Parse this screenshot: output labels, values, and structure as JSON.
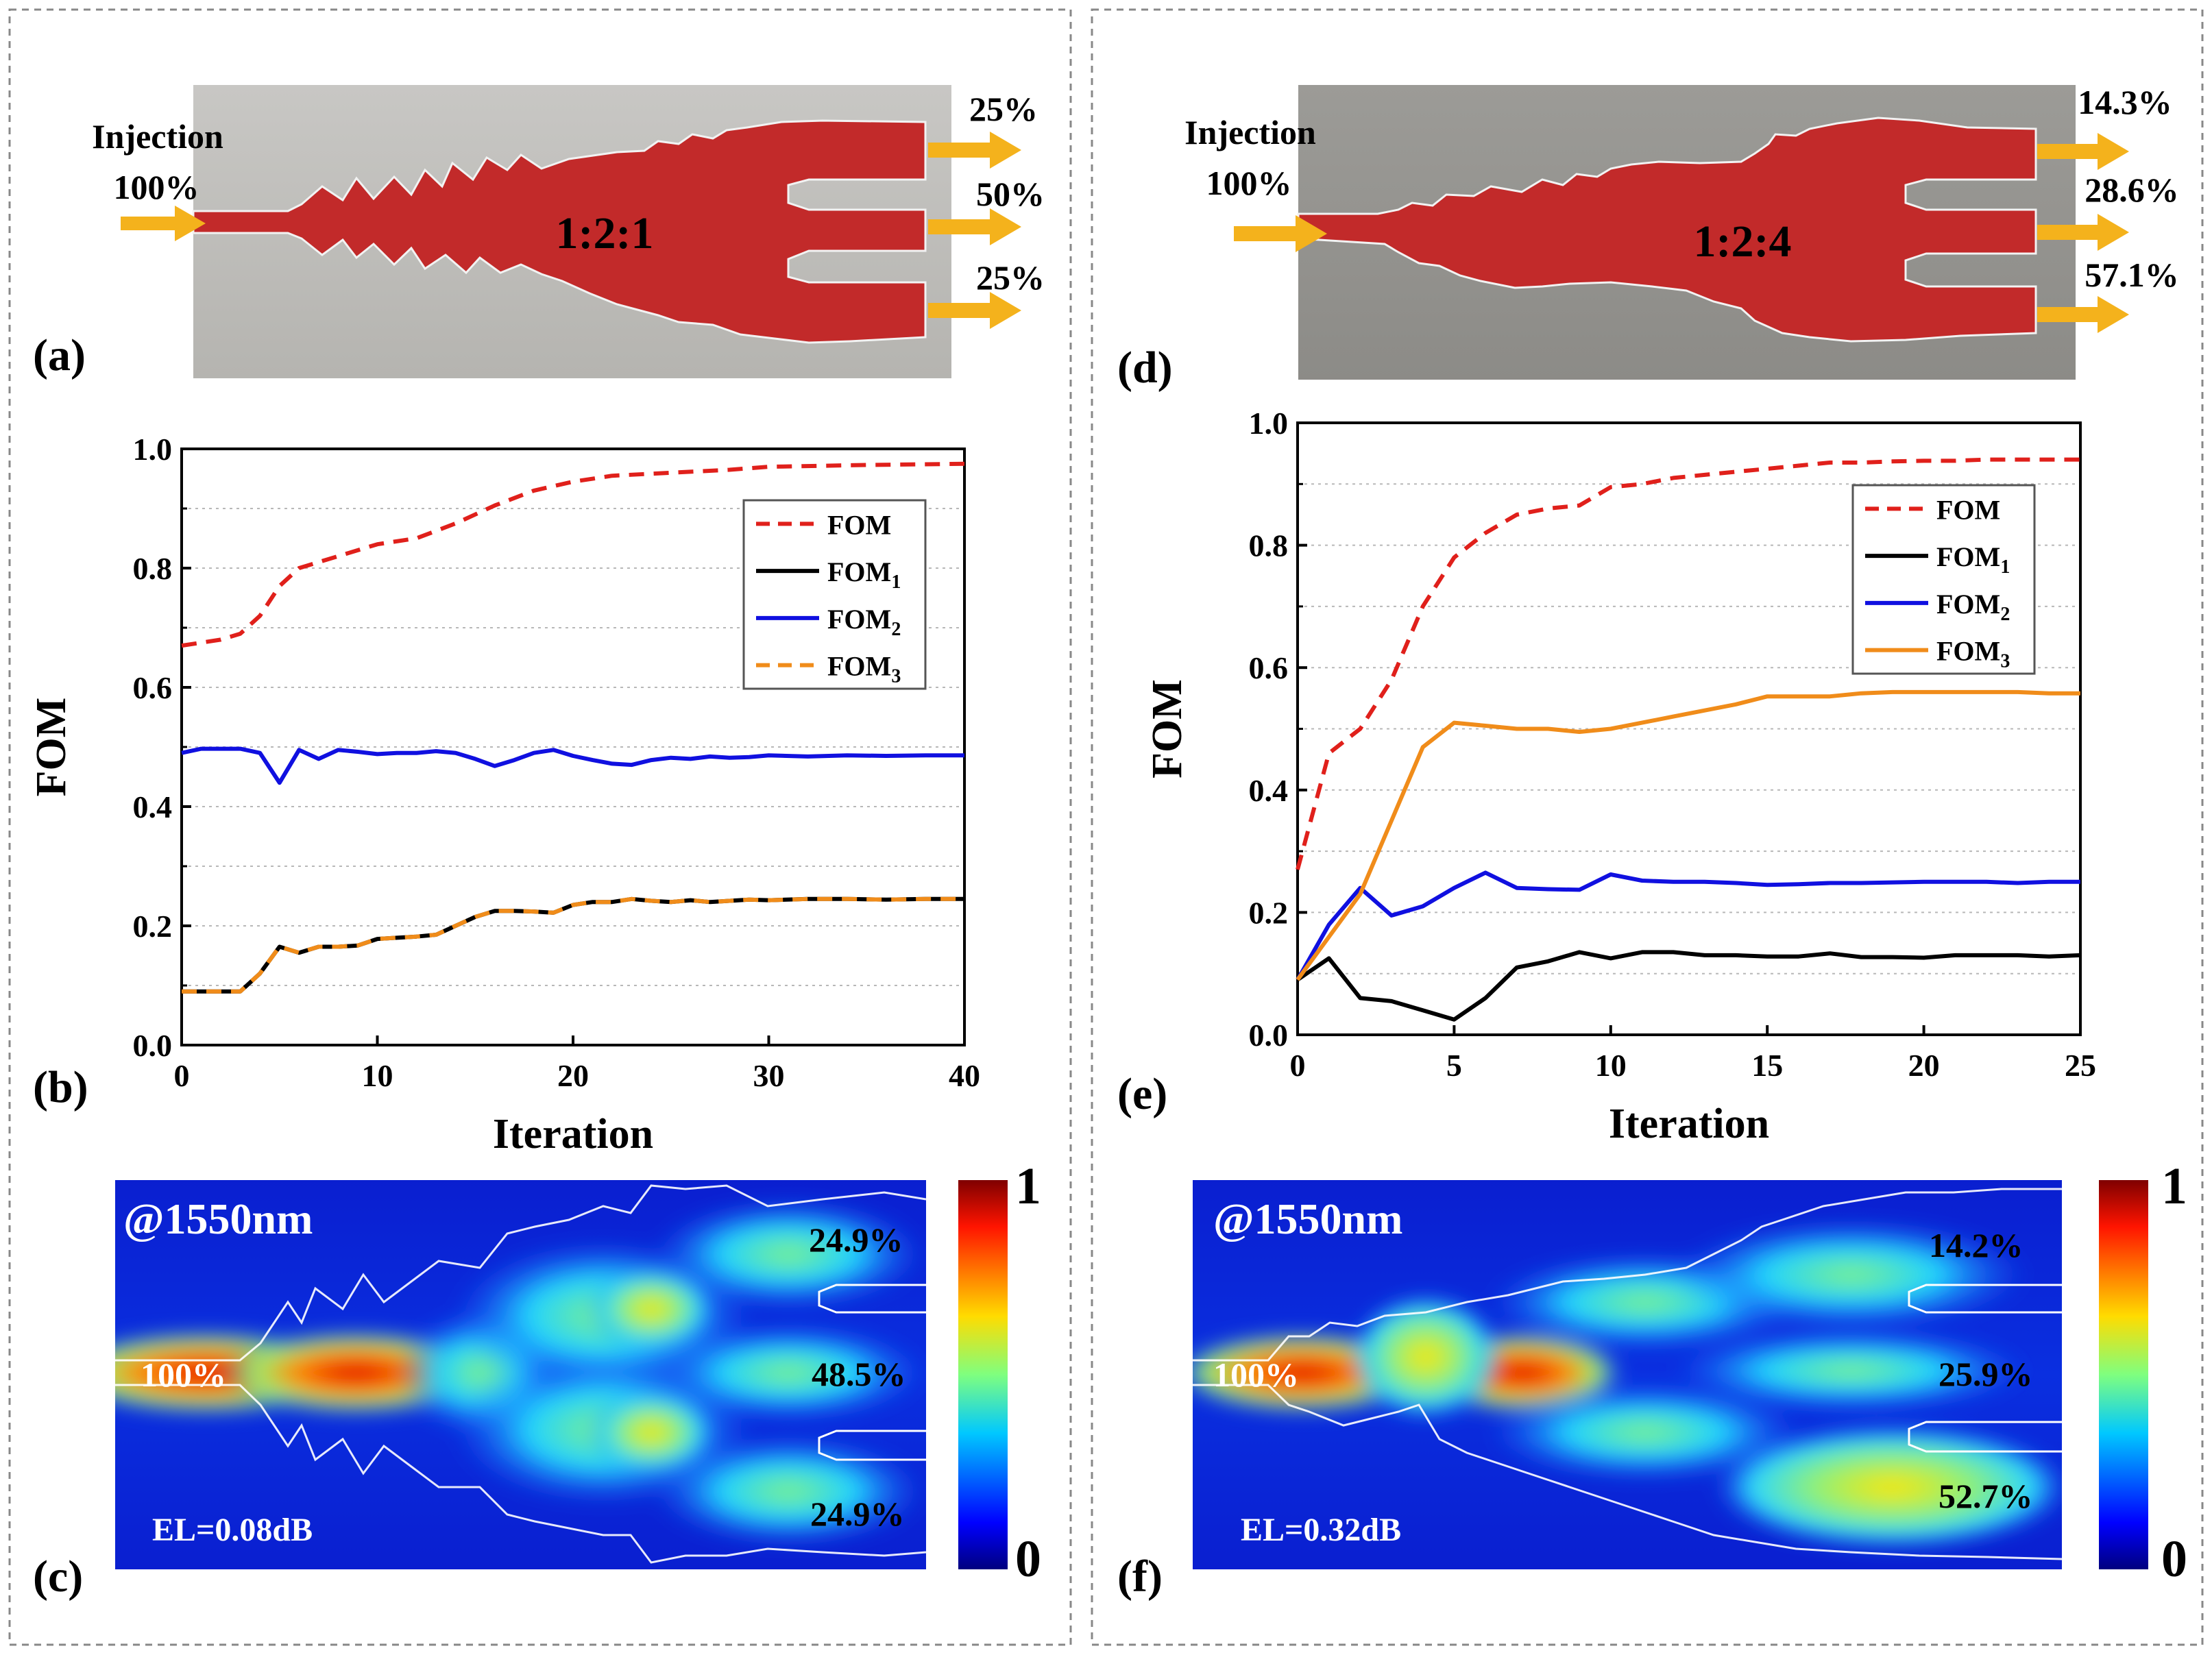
{
  "panel_labels": [
    "(a)",
    "(b)",
    "(c)",
    "(d)",
    "(e)",
    "(f)"
  ],
  "left": {
    "schematic": {
      "injection_label": "Injection",
      "injection_percent": "100%",
      "ratio": "1:2:1",
      "outputs": [
        "25%",
        "50%",
        "25%"
      ]
    },
    "field": {
      "wavelength": "@1550nm",
      "input_percent": "100%",
      "outputs": [
        "24.9%",
        "48.5%",
        "24.9%"
      ],
      "el": "EL=0.08dB",
      "colorbar_max": "1",
      "colorbar_min": "0"
    }
  },
  "right": {
    "schematic": {
      "injection_label": "Injection",
      "injection_percent": "100%",
      "ratio": "1:2:4",
      "outputs": [
        "14.3%",
        "28.6%",
        "57.1%"
      ]
    },
    "field": {
      "wavelength": "@1550nm",
      "input_percent": "100%",
      "outputs": [
        "14.2%",
        "25.9%",
        "52.7%"
      ],
      "el": "EL=0.32dB",
      "colorbar_max": "1",
      "colorbar_min": "0"
    }
  },
  "colors": {
    "FOM": "#e0201b",
    "FOM1": "#000000",
    "FOM2": "#1010e0",
    "FOM3": "#f08c1a",
    "waveguide": "#c22a2a",
    "arrow": "#f4b21c"
  },
  "chart_data": [
    {
      "type": "line",
      "panel": "(b)",
      "xlabel": "Iteration",
      "ylabel": "FOM",
      "xlim": [
        0,
        40
      ],
      "ylim": [
        0,
        1.0
      ],
      "xticks": [
        0,
        10,
        20,
        30,
        40
      ],
      "yticks": [
        0.0,
        0.2,
        0.4,
        0.6,
        0.8,
        1.0
      ],
      "ytick_labels": [
        "0.0",
        "0.2",
        "0.4",
        "0.6",
        "0.8",
        "1.0"
      ],
      "grid": "horizontal dotted",
      "legend_position": "top-right",
      "series": [
        {
          "name": "FOM",
          "sub": "",
          "style": "dashed",
          "color": "#e0201b",
          "x": [
            0,
            2,
            3,
            4,
            5,
            6,
            8,
            10,
            12,
            14,
            16,
            18,
            20,
            22,
            25,
            28,
            30,
            35,
            40
          ],
          "y": [
            0.67,
            0.68,
            0.69,
            0.72,
            0.77,
            0.8,
            0.82,
            0.84,
            0.85,
            0.875,
            0.905,
            0.93,
            0.945,
            0.955,
            0.96,
            0.965,
            0.97,
            0.973,
            0.975
          ]
        },
        {
          "name": "FOM",
          "sub": "1",
          "style": "solid",
          "color": "#000000",
          "x": [
            0,
            1,
            2,
            3,
            4,
            5,
            6,
            7,
            8,
            9,
            10,
            11,
            12,
            13,
            14,
            15,
            16,
            17,
            18,
            19,
            20,
            21,
            22,
            23,
            24,
            25,
            26,
            27,
            28,
            29,
            30,
            32,
            34,
            36,
            38,
            40
          ],
          "y": [
            0.09,
            0.09,
            0.09,
            0.09,
            0.12,
            0.165,
            0.155,
            0.165,
            0.165,
            0.167,
            0.178,
            0.18,
            0.182,
            0.185,
            0.2,
            0.215,
            0.225,
            0.225,
            0.224,
            0.222,
            0.235,
            0.24,
            0.24,
            0.245,
            0.242,
            0.24,
            0.243,
            0.24,
            0.242,
            0.244,
            0.243,
            0.245,
            0.245,
            0.244,
            0.245,
            0.245
          ]
        },
        {
          "name": "FOM",
          "sub": "2",
          "style": "solid",
          "color": "#1010e0",
          "x": [
            0,
            1,
            2,
            3,
            4,
            5,
            6,
            7,
            8,
            9,
            10,
            11,
            12,
            13,
            14,
            15,
            16,
            17,
            18,
            19,
            20,
            21,
            22,
            23,
            24,
            25,
            26,
            27,
            28,
            29,
            30,
            32,
            34,
            36,
            38,
            40
          ],
          "y": [
            0.49,
            0.497,
            0.497,
            0.497,
            0.49,
            0.44,
            0.495,
            0.48,
            0.495,
            0.492,
            0.488,
            0.49,
            0.49,
            0.493,
            0.49,
            0.48,
            0.468,
            0.478,
            0.49,
            0.495,
            0.485,
            0.478,
            0.472,
            0.47,
            0.478,
            0.482,
            0.48,
            0.484,
            0.482,
            0.483,
            0.486,
            0.484,
            0.486,
            0.485,
            0.486,
            0.486
          ]
        },
        {
          "name": "FOM",
          "sub": "3",
          "style": "dashed",
          "color": "#f08c1a",
          "x": [
            0,
            1,
            2,
            3,
            4,
            5,
            6,
            7,
            8,
            9,
            10,
            11,
            12,
            13,
            14,
            15,
            16,
            17,
            18,
            19,
            20,
            21,
            22,
            23,
            24,
            25,
            26,
            27,
            28,
            29,
            30,
            32,
            34,
            36,
            38,
            40
          ],
          "y": [
            0.09,
            0.09,
            0.09,
            0.09,
            0.12,
            0.165,
            0.155,
            0.165,
            0.165,
            0.167,
            0.178,
            0.18,
            0.182,
            0.185,
            0.2,
            0.215,
            0.225,
            0.225,
            0.224,
            0.222,
            0.235,
            0.24,
            0.24,
            0.245,
            0.242,
            0.24,
            0.243,
            0.24,
            0.242,
            0.244,
            0.243,
            0.245,
            0.245,
            0.244,
            0.245,
            0.245
          ]
        }
      ]
    },
    {
      "type": "line",
      "panel": "(e)",
      "xlabel": "Iteration",
      "ylabel": "FOM",
      "xlim": [
        0,
        25
      ],
      "ylim": [
        0,
        1.0
      ],
      "xticks": [
        0,
        5,
        10,
        15,
        20,
        25
      ],
      "yticks": [
        0.0,
        0.2,
        0.4,
        0.6,
        0.8,
        1.0
      ],
      "ytick_labels": [
        "0.0",
        "0.2",
        "0.4",
        "0.6",
        "0.8",
        "1.0"
      ],
      "grid": "horizontal dotted",
      "legend_position": "top-right",
      "series": [
        {
          "name": "FOM",
          "sub": "",
          "style": "dashed",
          "color": "#e0201b",
          "x": [
            0,
            1,
            2,
            3,
            4,
            5,
            6,
            7,
            8,
            9,
            10,
            11,
            12,
            13,
            14,
            15,
            16,
            17,
            18,
            19,
            20,
            21,
            22,
            23,
            24,
            25
          ],
          "y": [
            0.27,
            0.46,
            0.5,
            0.58,
            0.7,
            0.78,
            0.82,
            0.85,
            0.86,
            0.865,
            0.895,
            0.9,
            0.91,
            0.915,
            0.92,
            0.925,
            0.93,
            0.935,
            0.935,
            0.937,
            0.938,
            0.938,
            0.94,
            0.94,
            0.94,
            0.94
          ]
        },
        {
          "name": "FOM",
          "sub": "1",
          "style": "solid",
          "color": "#000000",
          "x": [
            0,
            1,
            2,
            3,
            4,
            5,
            6,
            7,
            8,
            9,
            10,
            11,
            12,
            13,
            14,
            15,
            16,
            17,
            18,
            19,
            20,
            21,
            22,
            23,
            24,
            25
          ],
          "y": [
            0.09,
            0.125,
            0.06,
            0.055,
            0.04,
            0.025,
            0.06,
            0.11,
            0.12,
            0.135,
            0.125,
            0.135,
            0.135,
            0.13,
            0.13,
            0.128,
            0.128,
            0.133,
            0.127,
            0.127,
            0.126,
            0.13,
            0.13,
            0.13,
            0.128,
            0.13
          ]
        },
        {
          "name": "FOM",
          "sub": "2",
          "style": "solid",
          "color": "#1010e0",
          "x": [
            0,
            1,
            2,
            3,
            4,
            5,
            6,
            7,
            8,
            9,
            10,
            11,
            12,
            13,
            14,
            15,
            16,
            17,
            18,
            19,
            20,
            21,
            22,
            23,
            24,
            25
          ],
          "y": [
            0.09,
            0.18,
            0.24,
            0.195,
            0.21,
            0.24,
            0.265,
            0.24,
            0.238,
            0.237,
            0.262,
            0.252,
            0.25,
            0.25,
            0.248,
            0.245,
            0.246,
            0.248,
            0.248,
            0.249,
            0.25,
            0.25,
            0.25,
            0.248,
            0.25,
            0.25
          ]
        },
        {
          "name": "FOM",
          "sub": "3",
          "style": "solid",
          "color": "#f08c1a",
          "x": [
            0,
            1,
            2,
            3,
            4,
            5,
            6,
            7,
            8,
            9,
            10,
            11,
            12,
            13,
            14,
            15,
            16,
            17,
            18,
            19,
            20,
            21,
            22,
            23,
            24,
            25
          ],
          "y": [
            0.09,
            0.16,
            0.23,
            0.35,
            0.47,
            0.51,
            0.505,
            0.5,
            0.5,
            0.495,
            0.5,
            0.51,
            0.52,
            0.53,
            0.54,
            0.553,
            0.553,
            0.553,
            0.558,
            0.56,
            0.56,
            0.56,
            0.56,
            0.56,
            0.558,
            0.558
          ]
        }
      ]
    }
  ]
}
